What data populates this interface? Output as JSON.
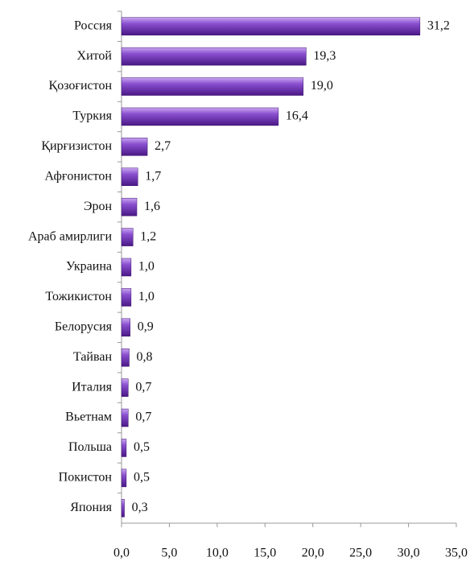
{
  "chart_data": {
    "type": "bar",
    "orientation": "horizontal",
    "categories": [
      "Россия",
      "Хитой",
      "Қозоғистон",
      "Туркия",
      "Қирғизистон",
      "Афғонистон",
      "Эрон",
      "Араб амирлиги",
      "Украина",
      "Тожикистон",
      "Белорусия",
      "Тайван",
      "Италия",
      "Вьетнам",
      "Польша",
      "Покистон",
      "Япония"
    ],
    "values": [
      31.2,
      19.3,
      19.0,
      16.4,
      2.7,
      1.7,
      1.6,
      1.2,
      1.0,
      1.0,
      0.9,
      0.8,
      0.7,
      0.7,
      0.5,
      0.5,
      0.3
    ],
    "value_labels": [
      "31,2",
      "19,3",
      "19,0",
      "16,4",
      "2,7",
      "1,7",
      "1,6",
      "1,2",
      "1,0",
      "1,0",
      "0,9",
      "0,8",
      "0,7",
      "0,7",
      "0,5",
      "0,5",
      "0,3"
    ],
    "color": "#7a3cc0",
    "xlim": [
      0,
      35
    ],
    "xticks": [
      {
        "value": 0,
        "label": "0,0"
      },
      {
        "value": 5,
        "label": "5,0"
      },
      {
        "value": 10,
        "label": "10,0"
      },
      {
        "value": 15,
        "label": "15,0"
      },
      {
        "value": 20,
        "label": "20,0"
      },
      {
        "value": 25,
        "label": "25,0"
      },
      {
        "value": 30,
        "label": "30,0"
      },
      {
        "value": 35,
        "label": "35,0"
      }
    ],
    "grid": false
  }
}
